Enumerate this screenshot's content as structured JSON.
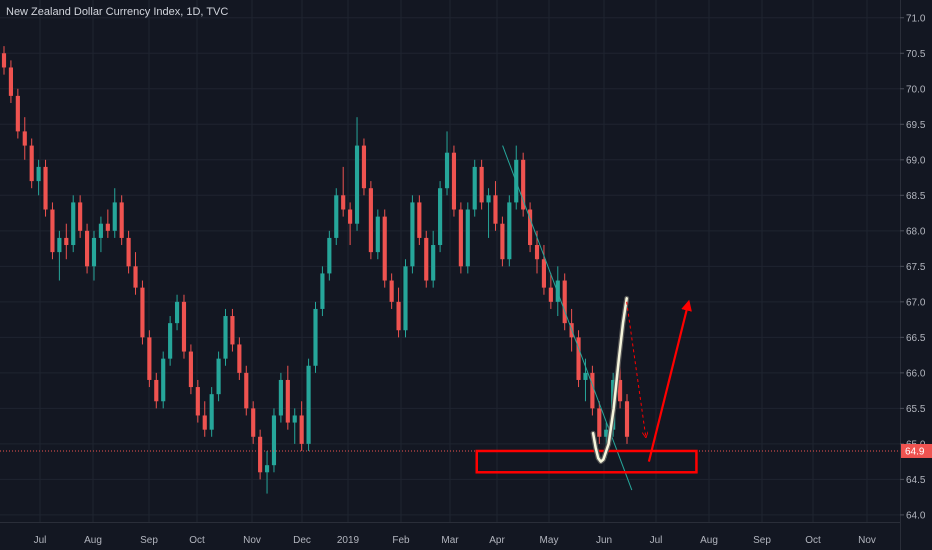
{
  "chart_data": {
    "type": "candlestick",
    "title": "New Zealand Dollar Currency Index, 1D, TVC",
    "y_ticks": [
      "71.0",
      "70.5",
      "70.0",
      "69.5",
      "69.0",
      "68.5",
      "68.0",
      "67.5",
      "67.0",
      "66.5",
      "66.0",
      "65.5",
      "65.0",
      "64.5",
      "64.0"
    ],
    "ylim": [
      63.9,
      71.25
    ],
    "x_ticks": [
      "Jul",
      "Aug",
      "Sep",
      "Oct",
      "Nov",
      "Dec",
      "2019",
      "Feb",
      "Mar",
      "Apr",
      "May",
      "Jun",
      "Jul",
      "Aug",
      "Sep",
      "Oct",
      "Nov"
    ],
    "x_range_months": [
      0,
      17
    ],
    "last_price": "64.9",
    "last_price_value": 64.9,
    "grid": true,
    "colors": {
      "up": "#26a69a",
      "down": "#ef5350",
      "background": "#131722",
      "price_line": "#ef5350",
      "trendline": "#26a69a",
      "annotation": "#ff0000",
      "price_tag": "#ef5350",
      "pattern": "#f5f5dc"
    },
    "series": [
      {
        "values": [
          [
            70.5,
            70.6,
            70.2,
            70.3
          ],
          [
            70.3,
            70.4,
            69.8,
            69.9
          ],
          [
            69.9,
            70.0,
            69.3,
            69.4
          ],
          [
            69.4,
            69.6,
            69.0,
            69.2
          ],
          [
            69.2,
            69.3,
            68.6,
            68.7
          ],
          [
            68.7,
            69.0,
            68.5,
            68.9
          ],
          [
            68.9,
            69.0,
            68.2,
            68.3
          ],
          [
            68.3,
            68.4,
            67.6,
            67.7
          ],
          [
            67.7,
            68.0,
            67.3,
            67.9
          ],
          [
            67.9,
            68.1,
            67.6,
            67.8
          ],
          [
            67.8,
            68.5,
            67.7,
            68.4
          ],
          [
            68.4,
            68.5,
            67.9,
            68.0
          ],
          [
            68.0,
            68.1,
            67.4,
            67.5
          ],
          [
            67.5,
            68.0,
            67.3,
            67.9
          ],
          [
            67.9,
            68.2,
            67.7,
            68.1
          ],
          [
            68.1,
            68.3,
            67.9,
            68.0
          ],
          [
            68.0,
            68.6,
            67.9,
            68.4
          ],
          [
            68.4,
            68.5,
            67.8,
            67.9
          ],
          [
            67.9,
            68.0,
            67.4,
            67.5
          ],
          [
            67.5,
            67.7,
            67.1,
            67.2
          ],
          [
            67.2,
            67.3,
            66.4,
            66.5
          ],
          [
            66.5,
            66.6,
            65.8,
            65.9
          ],
          [
            65.9,
            66.0,
            65.5,
            65.6
          ],
          [
            65.6,
            66.3,
            65.5,
            66.2
          ],
          [
            66.2,
            66.8,
            66.1,
            66.7
          ],
          [
            66.7,
            67.1,
            66.6,
            67.0
          ],
          [
            67.0,
            67.1,
            66.2,
            66.3
          ],
          [
            66.3,
            66.4,
            65.7,
            65.8
          ],
          [
            65.8,
            65.9,
            65.3,
            65.4
          ],
          [
            65.4,
            65.6,
            65.1,
            65.2
          ],
          [
            65.2,
            65.8,
            65.1,
            65.7
          ],
          [
            65.7,
            66.3,
            65.6,
            66.2
          ],
          [
            66.2,
            66.9,
            66.1,
            66.8
          ],
          [
            66.8,
            66.9,
            66.3,
            66.4
          ],
          [
            66.4,
            66.5,
            65.9,
            66.0
          ],
          [
            66.0,
            66.1,
            65.4,
            65.5
          ],
          [
            65.5,
            65.6,
            65.0,
            65.1
          ],
          [
            65.1,
            65.2,
            64.5,
            64.6
          ],
          [
            64.6,
            64.9,
            64.3,
            64.7
          ],
          [
            64.7,
            65.5,
            64.6,
            65.4
          ],
          [
            65.4,
            66.0,
            65.3,
            65.9
          ],
          [
            65.9,
            66.1,
            65.2,
            65.3
          ],
          [
            65.3,
            65.5,
            65.0,
            65.4
          ],
          [
            65.4,
            65.6,
            64.9,
            65.0
          ],
          [
            65.0,
            66.2,
            64.9,
            66.1
          ],
          [
            66.1,
            67.0,
            66.0,
            66.9
          ],
          [
            66.9,
            67.5,
            66.8,
            67.4
          ],
          [
            67.4,
            68.0,
            67.3,
            67.9
          ],
          [
            67.9,
            68.6,
            67.8,
            68.5
          ],
          [
            68.5,
            68.9,
            68.2,
            68.3
          ],
          [
            68.3,
            68.4,
            67.8,
            68.1
          ],
          [
            68.1,
            69.6,
            68.0,
            69.2
          ],
          [
            69.2,
            69.3,
            68.5,
            68.6
          ],
          [
            68.6,
            68.7,
            67.6,
            67.7
          ],
          [
            67.7,
            68.3,
            67.6,
            68.2
          ],
          [
            68.2,
            68.3,
            67.2,
            67.3
          ],
          [
            67.3,
            67.4,
            66.9,
            67.0
          ],
          [
            67.0,
            67.2,
            66.5,
            66.6
          ],
          [
            66.6,
            67.6,
            66.5,
            67.5
          ],
          [
            67.5,
            68.5,
            67.4,
            68.4
          ],
          [
            68.4,
            68.5,
            67.8,
            67.9
          ],
          [
            67.9,
            68.0,
            67.2,
            67.3
          ],
          [
            67.3,
            68.0,
            67.2,
            67.8
          ],
          [
            67.8,
            68.7,
            67.7,
            68.6
          ],
          [
            68.6,
            69.4,
            68.5,
            69.1
          ],
          [
            69.1,
            69.2,
            68.2,
            68.3
          ],
          [
            68.3,
            68.4,
            67.4,
            67.5
          ],
          [
            67.5,
            68.4,
            67.4,
            68.3
          ],
          [
            68.3,
            69.0,
            68.2,
            68.9
          ],
          [
            68.9,
            69.0,
            68.3,
            68.4
          ],
          [
            68.4,
            68.6,
            67.9,
            68.5
          ],
          [
            68.5,
            68.7,
            68.0,
            68.1
          ],
          [
            68.1,
            68.2,
            67.5,
            67.6
          ],
          [
            67.6,
            68.5,
            67.5,
            68.4
          ],
          [
            68.4,
            69.2,
            68.3,
            69.0
          ],
          [
            69.0,
            69.1,
            68.2,
            68.3
          ],
          [
            68.3,
            68.4,
            67.7,
            67.8
          ],
          [
            67.8,
            68.0,
            67.4,
            67.6
          ],
          [
            67.6,
            67.8,
            67.1,
            67.2
          ],
          [
            67.2,
            67.4,
            66.9,
            67.0
          ],
          [
            67.0,
            67.5,
            66.8,
            67.3
          ],
          [
            67.3,
            67.4,
            66.6,
            66.7
          ],
          [
            66.7,
            66.9,
            66.3,
            66.5
          ],
          [
            66.5,
            66.6,
            65.8,
            65.9
          ],
          [
            65.9,
            66.2,
            65.6,
            66.0
          ],
          [
            66.0,
            66.1,
            65.4,
            65.5
          ],
          [
            65.5,
            65.6,
            65.0,
            65.1
          ],
          [
            65.1,
            65.3,
            64.8,
            65.2
          ],
          [
            65.2,
            66.0,
            65.1,
            65.9
          ],
          [
            65.9,
            66.2,
            65.5,
            65.6
          ],
          [
            65.6,
            65.7,
            65.0,
            65.1
          ]
        ]
      }
    ],
    "annotations": {
      "trendline": {
        "from": [
          8.95,
          69.2
        ],
        "to": [
          11.45,
          64.35
        ]
      },
      "support_box": {
        "x_range": [
          8.45,
          12.7
        ],
        "y_range": [
          64.6,
          64.9
        ]
      },
      "pattern_points": [
        [
          10.7,
          65.15
        ],
        [
          10.75,
          64.95
        ],
        [
          10.8,
          64.8
        ],
        [
          10.85,
          64.75
        ],
        [
          10.9,
          64.78
        ],
        [
          11.0,
          65.0
        ],
        [
          11.1,
          65.5
        ],
        [
          11.2,
          66.2
        ],
        [
          11.28,
          66.7
        ],
        [
          11.35,
          67.05
        ]
      ],
      "dashed_arrow": {
        "from": [
          11.35,
          67.0
        ],
        "to": [
          11.72,
          65.1
        ]
      },
      "up_arrow": {
        "from": [
          11.78,
          64.75
        ],
        "to": [
          12.55,
          67.0
        ]
      }
    }
  }
}
